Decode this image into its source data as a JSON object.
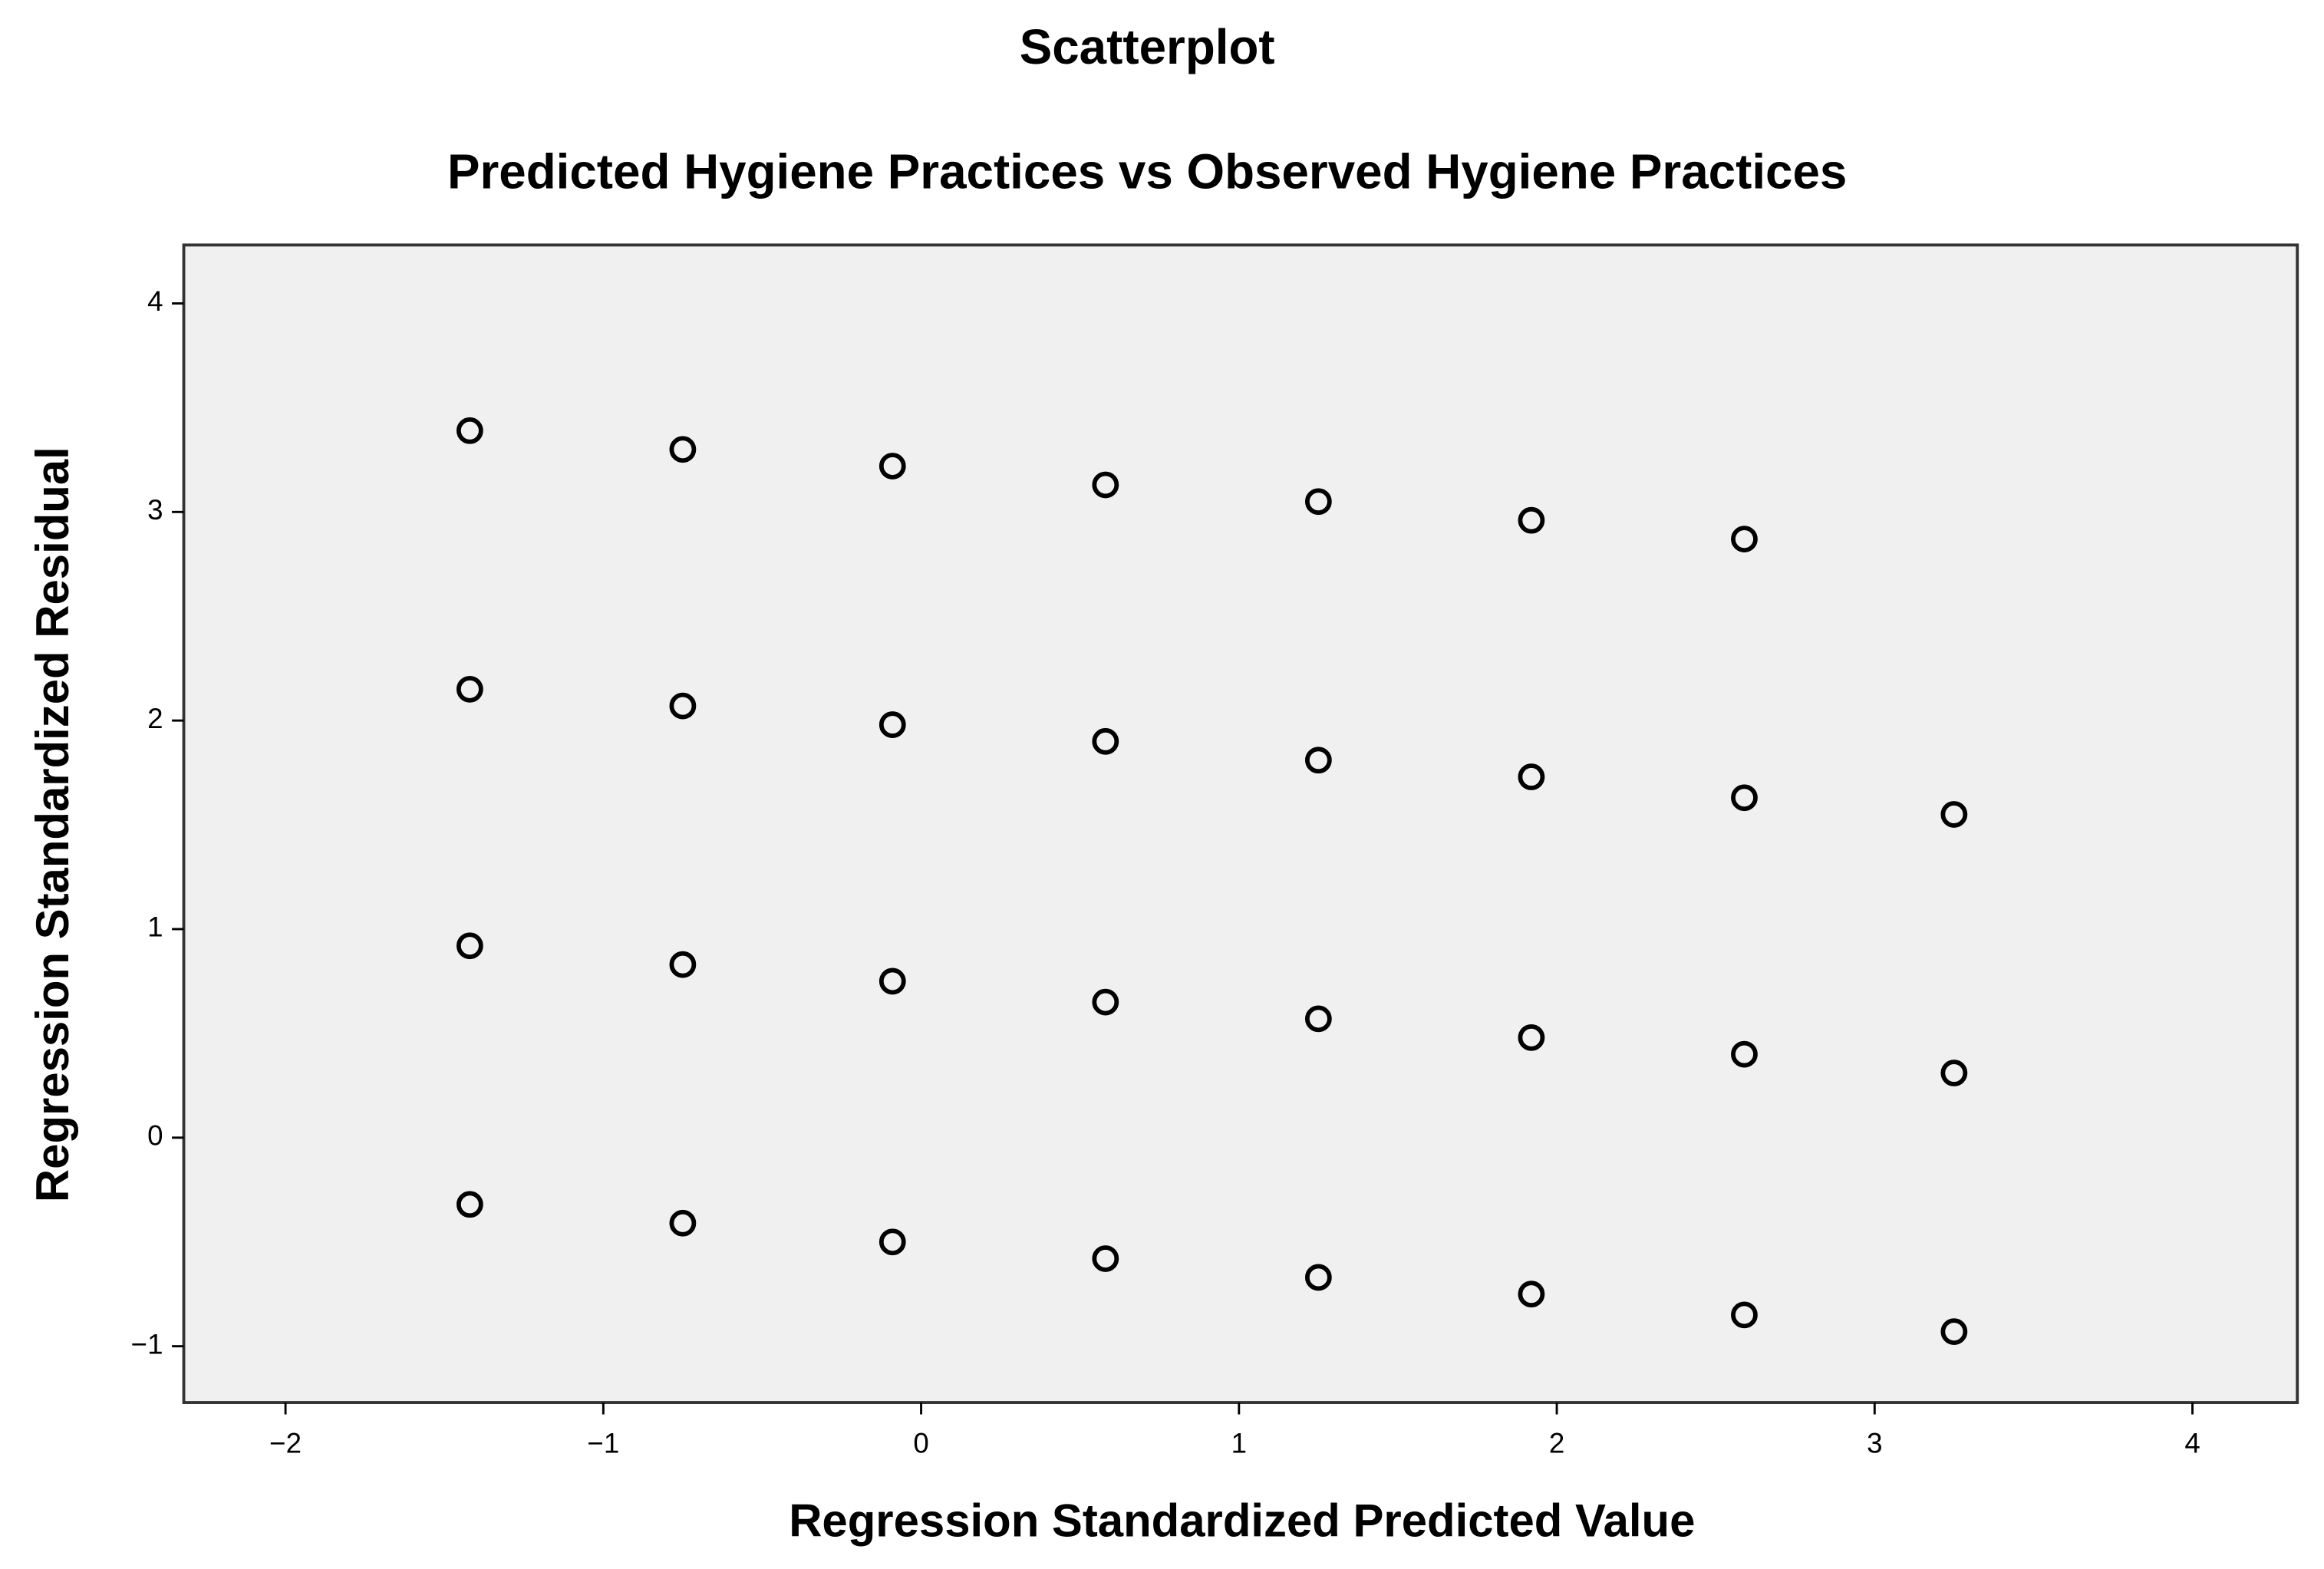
{
  "chart_data": {
    "type": "scatter",
    "title": "Scatterplot",
    "subtitle": "Predicted Hygiene Practices vs Observed Hygiene Practices",
    "x_label": "Regression Standardized Predicted Value",
    "y_label": "Regression Standardized Residual",
    "xlim": [
      -2.32,
      4.33
    ],
    "ylim": [
      -1.27,
      4.28
    ],
    "xticks": [
      {
        "value": -2,
        "label": "−2"
      },
      {
        "value": -1,
        "label": "−1"
      },
      0,
      1,
      2,
      3,
      4
    ],
    "yticks": [
      {
        "value": -1,
        "label": "−1"
      },
      0,
      1,
      2,
      3,
      4
    ],
    "color": "#000000",
    "background": "#f0f0f0",
    "grid": false,
    "series": [
      {
        "x": [
          -1.42,
          -0.75,
          -0.09,
          0.58,
          1.25,
          1.92,
          2.59,
          -1.42,
          -0.75,
          -0.09,
          0.58,
          1.25,
          1.92,
          2.59,
          3.25,
          -1.42,
          -0.75,
          -0.09,
          0.58,
          1.25,
          1.92,
          2.59,
          3.25,
          -1.42,
          -0.75,
          -0.09,
          0.58,
          1.25,
          1.92,
          2.59,
          3.25
        ],
        "values": [
          3.39,
          3.3,
          3.22,
          3.13,
          3.05,
          2.96,
          2.87,
          2.15,
          2.07,
          1.98,
          1.9,
          1.81,
          1.73,
          1.63,
          1.55,
          0.92,
          0.83,
          0.75,
          0.65,
          0.57,
          0.48,
          0.4,
          0.31,
          -0.32,
          -0.41,
          -0.5,
          -0.58,
          -0.67,
          -0.75,
          -0.85,
          -0.93
        ]
      }
    ]
  }
}
